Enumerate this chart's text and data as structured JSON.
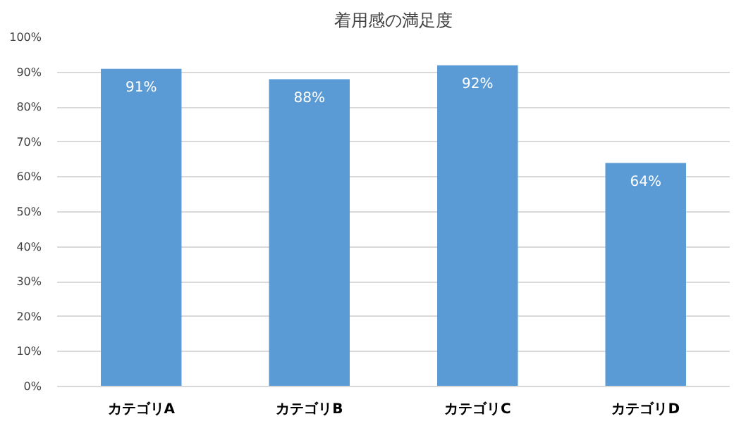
{
  "chart_data": {
    "type": "bar",
    "title": "着用感の満足度",
    "categories": [
      "カテゴリA",
      "カテゴリB",
      "カテゴリC",
      "カテゴリD"
    ],
    "values": [
      91,
      88,
      92,
      64
    ],
    "value_labels": [
      "91%",
      "88%",
      "92%",
      "64%"
    ],
    "color": "#5b9bd5",
    "ylim": [
      0,
      100
    ],
    "yticks": [
      {
        "value": 0,
        "label": "0%"
      },
      {
        "value": 10,
        "label": "10%"
      },
      {
        "value": 20,
        "label": "20%"
      },
      {
        "value": 30,
        "label": "30%"
      },
      {
        "value": 40,
        "label": "40%"
      },
      {
        "value": 50,
        "label": "50%"
      },
      {
        "value": 60,
        "label": "60%"
      },
      {
        "value": 70,
        "label": "70%"
      },
      {
        "value": 80,
        "label": "80%"
      },
      {
        "value": 90,
        "label": "90%"
      },
      {
        "value": 100,
        "label": "100%"
      }
    ],
    "grid": "y"
  }
}
